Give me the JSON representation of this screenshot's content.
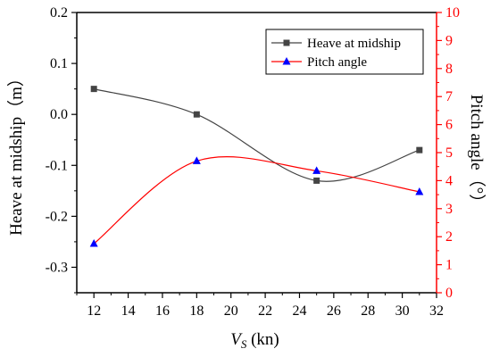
{
  "chart_data": {
    "type": "line",
    "title": "",
    "x": [
      12,
      18,
      25,
      31
    ],
    "xlabel_main": "V",
    "xlabel_sub": "S",
    "xlabel_unit": " (kn)",
    "xlim": [
      11,
      32
    ],
    "xticks": [
      12,
      14,
      16,
      18,
      20,
      22,
      24,
      26,
      28,
      30,
      32
    ],
    "ylabel_left": "Heave at midship（m）",
    "ylim_left": [
      -0.35,
      0.2
    ],
    "yticks_left": [
      "0.2",
      "0.1",
      "0.0",
      "-0.1",
      "-0.2",
      "-0.3"
    ],
    "ylabel_right": "Pitch angle（°）",
    "ylim_right": [
      0,
      10
    ],
    "yticks_right": [
      "0",
      "1",
      "2",
      "3",
      "4",
      "5",
      "6",
      "7",
      "8",
      "9",
      "10"
    ],
    "legend_position": "top-right",
    "series": [
      {
        "name": "Heave at midship",
        "axis": "left",
        "marker": "square",
        "color": "#444444",
        "values": [
          0.05,
          0.0,
          -0.13,
          -0.07
        ]
      },
      {
        "name": "Pitch angle",
        "axis": "right",
        "marker": "triangle",
        "color": "#ff0000",
        "marker_color": "#0000ff",
        "values": [
          1.75,
          4.7,
          4.35,
          3.6
        ]
      }
    ]
  }
}
